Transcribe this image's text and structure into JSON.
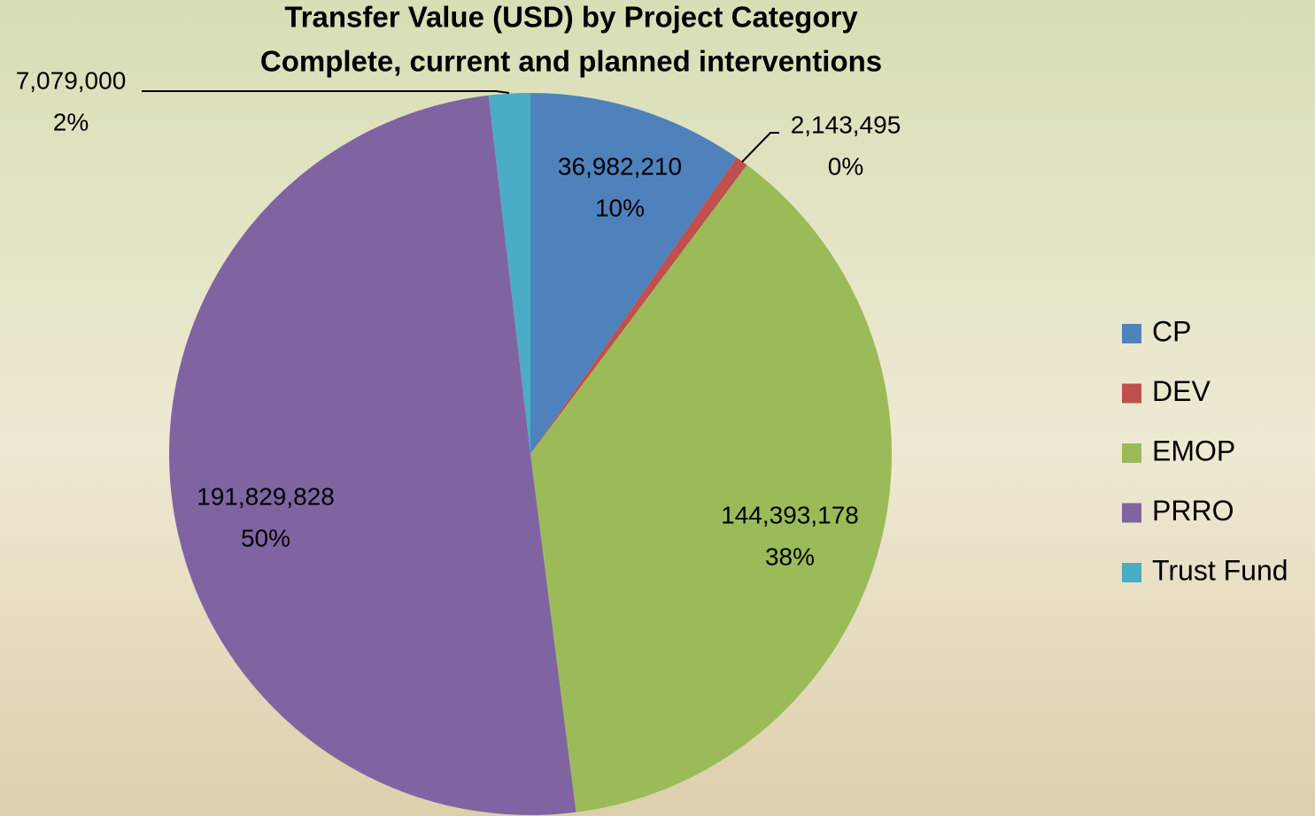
{
  "chart_data": {
    "type": "pie",
    "title": "Transfer Value (USD) by Project Category",
    "subtitle": "Complete, current and planned interventions",
    "categories": [
      "CP",
      "DEV",
      "EMOP",
      "PRRO",
      "Trust Fund"
    ],
    "values": [
      36982210,
      2143495,
      144393178,
      191829828,
      7079000
    ],
    "value_labels": [
      "36,982,210",
      "2,143,495",
      "144,393,178",
      "191,829,828",
      "7,079,000"
    ],
    "percent_labels": [
      "10%",
      "0%",
      "38%",
      "50%",
      "2%"
    ],
    "colors": [
      "#4f81bd",
      "#c0504d",
      "#9bbb59",
      "#8064a2",
      "#4bacc6"
    ],
    "legend": "right"
  }
}
